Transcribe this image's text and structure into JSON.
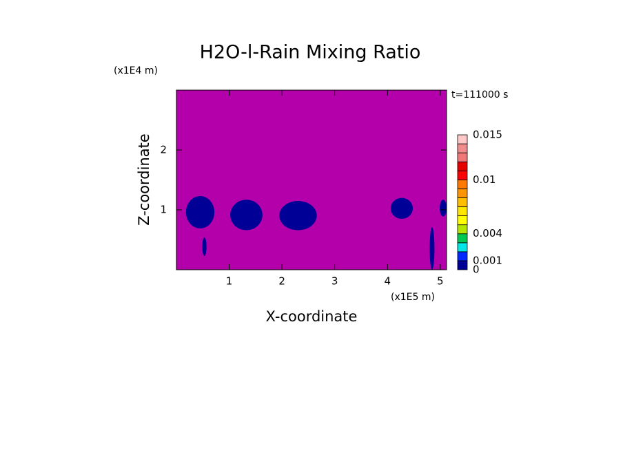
{
  "chart_data": {
    "type": "contour",
    "title": "H2O-l-Rain Mixing Ratio",
    "xlabel": "X-coordinate",
    "ylabel": "Z-coordinate",
    "x_unit": "(x1E5 m)",
    "y_unit": "(x1E4 m)",
    "annotation": "t=111000 s",
    "xlim": [
      0,
      5.12
    ],
    "ylim": [
      0,
      3
    ],
    "xticks": [
      1,
      2,
      3,
      4,
      5
    ],
    "yticks": [
      1,
      2
    ],
    "background_color": "#b400aa",
    "levels": [
      0,
      0.001,
      0.002,
      0.003,
      0.004,
      0.005,
      0.006,
      0.007,
      0.008,
      0.009,
      0.01,
      0.011,
      0.012,
      0.013,
      0.014,
      0.015
    ],
    "level_colors": [
      "#000096",
      "#0028ff",
      "#00e6e6",
      "#00c850",
      "#b4e600",
      "#ffff00",
      "#ffe600",
      "#ffbe00",
      "#ff9600",
      "#ff7800",
      "#ff0000",
      "#e60000",
      "#f07878",
      "#f08c8c",
      "#ffc8c8"
    ],
    "colorbar_ticks": [
      0,
      0.001,
      0.004,
      0.01,
      0.015
    ],
    "features": [
      {
        "level": 0,
        "x": [
          0.18,
          0.72
        ],
        "z": [
          0.69,
          1.23
        ]
      },
      {
        "level": 0,
        "x": [
          1.02,
          1.63
        ],
        "z": [
          0.66,
          1.17
        ]
      },
      {
        "level": 0,
        "x": [
          1.95,
          2.66
        ],
        "z": [
          0.66,
          1.15
        ]
      },
      {
        "level": 0,
        "x": [
          4.06,
          4.48
        ],
        "z": [
          0.85,
          1.2
        ]
      },
      {
        "level": 0,
        "x": [
          4.8,
          4.89
        ],
        "z": [
          0,
          0.71
        ]
      },
      {
        "level": 0,
        "x": [
          0.49,
          0.57
        ],
        "z": [
          0.23,
          0.54
        ]
      },
      {
        "level": 0,
        "x": [
          4.99,
          5.12
        ],
        "z": [
          0.89,
          1.17
        ]
      }
    ]
  }
}
